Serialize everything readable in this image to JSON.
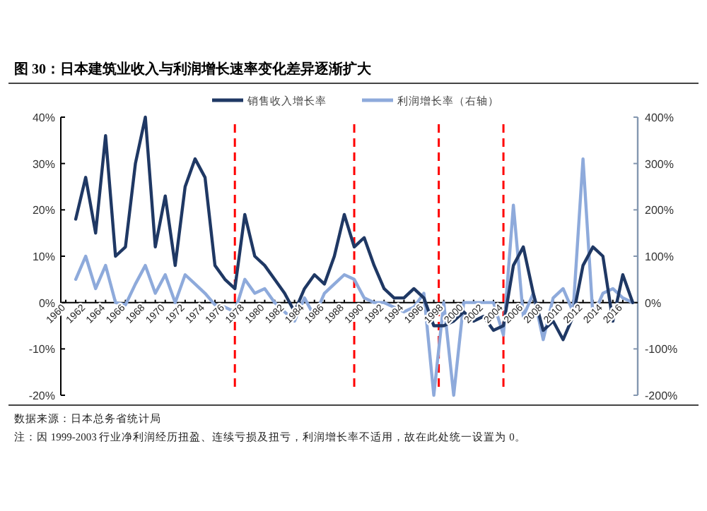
{
  "chart_data": {
    "type": "line",
    "title": "图 30：日本建筑业收入与利润增长速率变化差异逐渐扩大",
    "x": [
      1961,
      1962,
      1963,
      1964,
      1965,
      1966,
      1967,
      1968,
      1969,
      1970,
      1971,
      1972,
      1973,
      1974,
      1975,
      1976,
      1977,
      1978,
      1979,
      1980,
      1981,
      1982,
      1983,
      1984,
      1985,
      1986,
      1987,
      1988,
      1989,
      1990,
      1991,
      1992,
      1993,
      1994,
      1995,
      1996,
      1997,
      1998,
      1999,
      2000,
      2001,
      2002,
      2003,
      2004,
      2005,
      2006,
      2007,
      2008,
      2009,
      2010,
      2011,
      2012,
      2013,
      2014,
      2015,
      2016,
      2017
    ],
    "series": [
      {
        "name": "销售收入增长率",
        "color": "#1f3864",
        "axis": "y",
        "values": [
          18,
          27,
          15,
          36,
          10,
          12,
          30,
          40,
          12,
          23,
          8,
          25,
          31,
          27,
          8,
          5,
          3,
          19,
          10,
          8,
          5,
          2,
          -2,
          3,
          6,
          4,
          10,
          19,
          12,
          14,
          8,
          3,
          1,
          1,
          3,
          1,
          -5,
          -5,
          -4,
          -2,
          -4,
          -3,
          -6,
          -5,
          8,
          12,
          2,
          -6,
          -4,
          -8,
          -3,
          8,
          12,
          10,
          -4,
          6,
          0
        ]
      },
      {
        "name": "利润增长率（右轴）",
        "color": "#8eaadb",
        "axis": "y2",
        "values": [
          50,
          100,
          30,
          80,
          0,
          -5,
          40,
          80,
          20,
          60,
          0,
          60,
          40,
          20,
          -5,
          -10,
          -20,
          50,
          20,
          30,
          0,
          -20,
          -40,
          10,
          -30,
          20,
          40,
          60,
          50,
          10,
          0,
          0,
          -10,
          -20,
          -10,
          20,
          -200,
          0,
          -200,
          0,
          0,
          0,
          0,
          -70,
          210,
          -30,
          20,
          -80,
          10,
          30,
          -20,
          310,
          -30,
          20,
          30,
          10,
          0
        ]
      }
    ],
    "xlim": [
      1959.5,
      2017.5
    ],
    "xticks": [
      1960,
      1962,
      1964,
      1966,
      1968,
      1970,
      1972,
      1974,
      1976,
      1978,
      1980,
      1982,
      1984,
      1986,
      1988,
      1990,
      1992,
      1994,
      1996,
      1998,
      2000,
      2002,
      2004,
      2006,
      2008,
      2010,
      2012,
      2014,
      2016
    ],
    "ylim": [
      -20,
      40
    ],
    "yticks": [
      {
        "value": -20,
        "label": "-20%"
      },
      {
        "value": -10,
        "label": "-10%"
      },
      {
        "value": 0,
        "label": "0%"
      },
      {
        "value": 10,
        "label": "10%"
      },
      {
        "value": 20,
        "label": "20%"
      },
      {
        "value": 30,
        "label": "30%"
      },
      {
        "value": 40,
        "label": "40%"
      }
    ],
    "y2lim": [
      -200,
      400
    ],
    "y2ticks": [
      {
        "value": -200,
        "label": "-200%"
      },
      {
        "value": -100,
        "label": "-100%"
      },
      {
        "value": 0,
        "label": "0%"
      },
      {
        "value": 100,
        "label": "100%"
      },
      {
        "value": 200,
        "label": "200%"
      },
      {
        "value": 300,
        "label": "300%"
      },
      {
        "value": 400,
        "label": "400%"
      }
    ],
    "ref_lines": [
      {
        "axis": "x",
        "value": 1977,
        "color": "#ff0000",
        "line_style": "dashed"
      },
      {
        "axis": "x",
        "value": 1989,
        "color": "#ff0000",
        "line_style": "dashed"
      },
      {
        "axis": "x",
        "value": 1997.5,
        "color": "#ff0000",
        "line_style": "dashed"
      },
      {
        "axis": "x",
        "value": 2004,
        "color": "#ff0000",
        "line_style": "dashed"
      }
    ],
    "legend": "top",
    "grid": false,
    "annotations": [
      "数据来源：日本总务省统计局",
      "注：因 1999-2003 行业净利润经历扭盈、连续亏损及扭亏，利润增长率不适用，故在此处统一设置为 0。"
    ]
  }
}
